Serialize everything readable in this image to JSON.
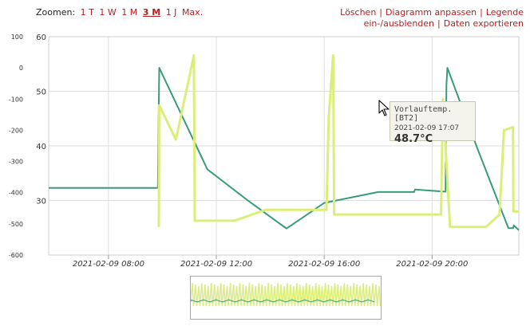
{
  "toolbar": {
    "zoom_label": "Zoomen:",
    "zoom_options": [
      "1 T",
      "1 W",
      "1 M",
      "3 M",
      "1 J",
      "Max."
    ],
    "zoom_active": "3 M",
    "actions": [
      "Löschen",
      "Diagramm anpassen",
      "Legende ein-/ausblenden",
      "Daten exportieren"
    ]
  },
  "tooltip": {
    "series": "Vorlauftemp. [BT2]",
    "time": "2021-02-09 17:07",
    "value": "48.7°C"
  },
  "colors": {
    "green": "#3a9a7c",
    "yellow": "#dcee7a",
    "grid": "#dddddd",
    "link": "#b22222"
  },
  "chart_data": {
    "type": "line",
    "x_ticks": [
      "2021-02-09 08:00",
      "2021-02-09 12:00",
      "2021-02-09 16:00",
      "2021-02-09 20:00"
    ],
    "xlim": [
      "2021-02-09 05:47",
      "2021-02-09 23:13"
    ],
    "left_axis": {
      "ticks": [
        100,
        0,
        -100,
        -200,
        -300,
        -400,
        -500,
        -600
      ],
      "ylim": [
        -600,
        100
      ]
    },
    "right_axis": {
      "ticks": [
        60,
        50,
        40,
        30
      ],
      "ylim": [
        20,
        60
      ]
    },
    "grid": true,
    "series": [
      {
        "color": "#3a9a7c",
        "points": [
          [
            "2021-02-09 05:47",
            -385
          ],
          [
            "2021-02-09 09:50",
            -385
          ],
          [
            "2021-02-09 09:52",
            -107
          ],
          [
            "2021-02-09 09:53",
            0
          ],
          [
            "2021-02-09 11:40",
            -325
          ],
          [
            "2021-02-09 13:10",
            -425
          ],
          [
            "2021-02-09 14:36",
            -515
          ],
          [
            "2021-02-09 16:00",
            -433
          ],
          [
            "2021-02-09 18:00",
            -398
          ],
          [
            "2021-02-09 19:20",
            -398
          ],
          [
            "2021-02-09 19:22",
            -390
          ],
          [
            "2021-02-09 20:30",
            -397
          ],
          [
            "2021-02-09 20:32",
            -55
          ],
          [
            "2021-02-09 20:34",
            0
          ],
          [
            "2021-02-09 21:40",
            -255
          ],
          [
            "2021-02-09 22:50",
            -514
          ],
          [
            "2021-02-09 23:00",
            -514
          ],
          [
            "2021-02-09 23:02",
            -505
          ],
          [
            "2021-02-09 23:13",
            -520
          ]
        ]
      },
      {
        "color": "#dcee7a",
        "points": [
          [
            "2021-02-09 09:52",
            -510
          ],
          [
            "2021-02-09 09:53",
            -120
          ],
          [
            "2021-02-09 10:30",
            -230
          ],
          [
            "2021-02-09 11:10",
            40
          ],
          [
            "2021-02-09 11:12",
            -490
          ],
          [
            "2021-02-09 12:40",
            -490
          ],
          [
            "2021-02-09 13:50",
            -455
          ],
          [
            "2021-02-09 16:05",
            -455
          ],
          [
            "2021-02-09 16:10",
            -160
          ],
          [
            "2021-02-09 16:20",
            40
          ],
          [
            "2021-02-09 16:22",
            -470
          ],
          [
            "2021-02-09 20:20",
            -470
          ],
          [
            "2021-02-09 20:24",
            -100
          ],
          [
            "2021-02-09 20:40",
            -510
          ],
          [
            "2021-02-09 22:00",
            -510
          ],
          [
            "2021-02-09 22:30",
            -470
          ],
          [
            "2021-02-09 22:40",
            -200
          ],
          [
            "2021-02-09 23:00",
            -190
          ],
          [
            "2021-02-09 23:01",
            -460
          ],
          [
            "2021-02-09 23:13",
            -460
          ]
        ]
      }
    ]
  }
}
